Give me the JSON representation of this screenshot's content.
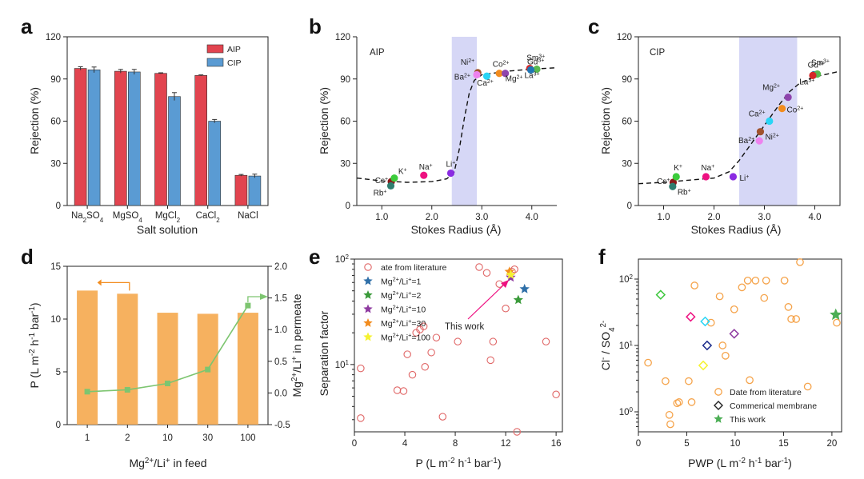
{
  "chart_data": [
    {
      "panel": "a",
      "type": "bar",
      "xlabel": "Salt solution",
      "ylabel": "Rejection (%)",
      "ylim": [
        0,
        120
      ],
      "yticks": [
        "0",
        "30",
        "60",
        "90",
        "120"
      ],
      "legend_position": "top-right",
      "categories": [
        {
          "parts": [
            [
              "Na",
              ""
            ],
            [
              "2",
              "sub"
            ],
            [
              "SO",
              ""
            ],
            [
              "4",
              "sub"
            ]
          ]
        },
        {
          "parts": [
            [
              "MgSO",
              ""
            ],
            [
              "4",
              "sub"
            ]
          ]
        },
        {
          "parts": [
            [
              "MgCl",
              ""
            ],
            [
              "2",
              "sub"
            ]
          ]
        },
        {
          "parts": [
            [
              "CaCl",
              ""
            ],
            [
              "2",
              "sub"
            ]
          ]
        },
        {
          "parts": [
            [
              "NaCl",
              ""
            ]
          ]
        }
      ],
      "series": [
        {
          "name": "AIP",
          "color": "#e2444f",
          "values": [
            97.5,
            95.5,
            94,
            92.5,
            21.5
          ],
          "errors": [
            1.2,
            1.3,
            0.4,
            0.4,
            0.6
          ]
        },
        {
          "name": "CIP",
          "color": "#5a9bd3",
          "values": [
            96.5,
            95,
            77.5,
            60,
            21
          ],
          "errors": [
            2,
            1.8,
            2.8,
            1.2,
            1.3
          ]
        }
      ]
    },
    {
      "panel": "b",
      "type": "scatter",
      "annotation": "AIP",
      "xlabel": "Stokes Radius (Å)",
      "ylabel": "Rejection (%)",
      "xlim": [
        0.5,
        4.5
      ],
      "ylim": [
        0,
        120
      ],
      "xticks": [
        "1.0",
        "2.0",
        "3.0",
        "4.0"
      ],
      "yticks": [
        "0",
        "30",
        "60",
        "90",
        "120"
      ],
      "band": [
        2.4,
        2.9
      ],
      "fit_curve": [
        [
          0.5,
          19.5
        ],
        [
          1.0,
          17.5
        ],
        [
          1.5,
          16.5
        ],
        [
          2.0,
          17
        ],
        [
          2.3,
          19
        ],
        [
          2.45,
          24
        ],
        [
          2.55,
          40
        ],
        [
          2.65,
          62
        ],
        [
          2.75,
          80
        ],
        [
          2.85,
          89
        ],
        [
          3.0,
          93
        ],
        [
          3.5,
          95.5
        ],
        [
          4.0,
          97
        ],
        [
          4.5,
          98
        ]
      ],
      "points": [
        {
          "label": "Cs+",
          "x": 1.19,
          "y": 17,
          "color": "#8b1a1a",
          "label_color": "#8b1a1a"
        },
        {
          "label": "K+",
          "x": 1.25,
          "y": 19.5,
          "color": "#3ccc3c",
          "label_color": "#2ca02c"
        },
        {
          "label": "Rb+",
          "x": 1.18,
          "y": 14,
          "color": "#2e7d6f",
          "label_color": "#2e7d6f"
        },
        {
          "label": "Na+",
          "x": 1.84,
          "y": 21.5,
          "color": "#ee1181",
          "label_color": "#ee1181"
        },
        {
          "label": "Li+",
          "x": 2.38,
          "y": 23,
          "color": "#8a2be2",
          "label_color": "#8a2be2"
        },
        {
          "label": "Ni2+",
          "x": 2.92,
          "y": 94.5,
          "color": "#a0522d",
          "label_color": "#a0522d"
        },
        {
          "label": "Ba2+",
          "x": 2.9,
          "y": 93,
          "color": "#ee82ee",
          "label_color": "#ee82ee"
        },
        {
          "label": "Ca2+",
          "x": 3.1,
          "y": 92,
          "color": "#29d5f5",
          "label_color": "#1fb5d6"
        },
        {
          "label": "Co2+",
          "x": 3.35,
          "y": 94,
          "color": "#f28c1e",
          "label_color": "#f28c1e"
        },
        {
          "label": "Mg2+",
          "x": 3.47,
          "y": 94,
          "color": "#8e44ad",
          "label_color": "#8e44ad"
        },
        {
          "label": "Sm3+",
          "x": 3.96,
          "y": 97.5,
          "color": "#d62728",
          "label_color": "#d62728"
        },
        {
          "label": "Gd3+",
          "x": 4.1,
          "y": 97,
          "color": "#59b84f",
          "label_color": "#59b84f"
        },
        {
          "label": "La3+",
          "x": 3.98,
          "y": 96.5,
          "color": "#1f77b4",
          "label_color": "#1f77b4"
        }
      ]
    },
    {
      "panel": "c",
      "type": "scatter",
      "annotation": "CIP",
      "xlabel": "Stokes Radius (Å)",
      "ylabel": "Rejection (%)",
      "xlim": [
        0.5,
        4.5
      ],
      "ylim": [
        0,
        120
      ],
      "xticks": [
        "1.0",
        "2.0",
        "3.0",
        "4.0"
      ],
      "yticks": [
        "0",
        "30",
        "60",
        "90",
        "120"
      ],
      "band": [
        2.5,
        3.65
      ],
      "fit_curve": [
        [
          0.5,
          15.5
        ],
        [
          1.0,
          16.5
        ],
        [
          1.5,
          18
        ],
        [
          2.0,
          19.5
        ],
        [
          2.3,
          24
        ],
        [
          2.5,
          32
        ],
        [
          2.7,
          42
        ],
        [
          2.9,
          52
        ],
        [
          3.1,
          62
        ],
        [
          3.3,
          72
        ],
        [
          3.5,
          81
        ],
        [
          3.7,
          87
        ],
        [
          4.0,
          91.5
        ],
        [
          4.5,
          95.5
        ]
      ],
      "points": [
        {
          "label": "Cs+",
          "x": 1.19,
          "y": 16.5,
          "color": "#8b1a1a",
          "label_color": "#8b1a1a"
        },
        {
          "label": "K+",
          "x": 1.25,
          "y": 20.5,
          "color": "#3ccc3c",
          "label_color": "#2ca02c"
        },
        {
          "label": "Rb+",
          "x": 1.18,
          "y": 13.5,
          "color": "#2e7d6f",
          "label_color": "#2e7d6f"
        },
        {
          "label": "Na+",
          "x": 1.84,
          "y": 20.5,
          "color": "#ee1181",
          "label_color": "#ee1181"
        },
        {
          "label": "Li+",
          "x": 2.38,
          "y": 20.5,
          "color": "#8a2be2",
          "label_color": "#8a2be2"
        },
        {
          "label": "Ba2+",
          "x": 2.9,
          "y": 46,
          "color": "#ee82ee",
          "label_color": "#ee82ee"
        },
        {
          "label": "Ni2+",
          "x": 2.92,
          "y": 52.5,
          "color": "#a0522d",
          "label_color": "#a0522d"
        },
        {
          "label": "Ca2+",
          "x": 3.1,
          "y": 60,
          "color": "#29d5f5",
          "label_color": "#1fb5d6"
        },
        {
          "label": "Co2+",
          "x": 3.35,
          "y": 69,
          "color": "#f28c1e",
          "label_color": "#f28c1e"
        },
        {
          "label": "Mg2+",
          "x": 3.47,
          "y": 77,
          "color": "#8e44ad",
          "label_color": "#8e44ad"
        },
        {
          "label": "La3+",
          "x": 3.98,
          "y": 93,
          "color": "#1f77b4",
          "label_color": "#1f77b4"
        },
        {
          "label": "Gd3+",
          "x": 4.05,
          "y": 93.5,
          "color": "#59b84f",
          "label_color": "#59b84f"
        },
        {
          "label": "Sm3+",
          "x": 3.96,
          "y": 92.5,
          "color": "#d62728",
          "label_color": "#d62728"
        }
      ]
    },
    {
      "panel": "d",
      "type": "bar+line",
      "xlabel": "Mg2+/Li+ in feed",
      "ylabel_left": "P (L m-2 h-1 bar-1)",
      "ylabel_right": "Mg2+/Li+ in permeate",
      "categories": [
        "1",
        "2",
        "10",
        "30",
        "100"
      ],
      "ylim_left": [
        0,
        15
      ],
      "yticks_left": [
        "0",
        "5",
        "10",
        "15"
      ],
      "ylim_right": [
        -0.5,
        2.0
      ],
      "yticks_right": [
        "-0.5",
        "0.0",
        "0.5",
        "1.0",
        "1.5",
        "2.0"
      ],
      "bars": {
        "color": "#f5a94e",
        "values": [
          12.7,
          12.4,
          10.6,
          10.5,
          10.6
        ]
      },
      "line": {
        "color": "#7dc570",
        "values": [
          0.02,
          0.05,
          0.15,
          0.37,
          1.38
        ]
      }
    },
    {
      "panel": "e",
      "type": "scatter",
      "xlabel": "P (L m-2 h-1 bar-1)",
      "ylabel": "Separation factor",
      "xlim": [
        0,
        16.5
      ],
      "ylim_log": [
        2.3,
        100
      ],
      "xticks": [
        "0",
        "4",
        "8",
        "12",
        "16"
      ],
      "annotation": "This work",
      "legend": [
        {
          "label": "Date from literature",
          "marker": "circle",
          "color": "#e06666"
        },
        {
          "label": "Mg2+/Li+=1",
          "marker": "star",
          "color": "#2f6fa8"
        },
        {
          "label": "Mg2+/Li+=2",
          "marker": "star",
          "color": "#3a9a3a"
        },
        {
          "label": "Mg2+/Li+=10",
          "marker": "star",
          "color": "#8e3aa0"
        },
        {
          "label": "Mg2+/Li+=30",
          "marker": "star",
          "color": "#f28c1e"
        },
        {
          "label": "Mg2+/Li+=100",
          "marker": "star",
          "color": "#f5f230"
        }
      ],
      "literature": [
        [
          0.5,
          9.2
        ],
        [
          0.5,
          3.1
        ],
        [
          3.4,
          5.7
        ],
        [
          3.9,
          5.6
        ],
        [
          4.2,
          12.5
        ],
        [
          4.6,
          8
        ],
        [
          4.9,
          20
        ],
        [
          5.2,
          21.5
        ],
        [
          5.5,
          23
        ],
        [
          5.6,
          9.5
        ],
        [
          6.1,
          13
        ],
        [
          6.5,
          18
        ],
        [
          7.0,
          3.2
        ],
        [
          8.2,
          16.5
        ],
        [
          9.9,
          84
        ],
        [
          10.5,
          74
        ],
        [
          10.8,
          11
        ],
        [
          11.0,
          16.5
        ],
        [
          11.5,
          58
        ],
        [
          12.0,
          34
        ],
        [
          12.5,
          76
        ],
        [
          12.9,
          2.3
        ],
        [
          15.2,
          16.5
        ],
        [
          16.0,
          5.2
        ],
        [
          12.7,
          80
        ]
      ],
      "this_work": [
        {
          "series": "Mg2+/Li+=1",
          "x": 13.5,
          "y": 52,
          "color": "#2f6fa8"
        },
        {
          "series": "Mg2+/Li+=2",
          "x": 13.0,
          "y": 41,
          "color": "#3a9a3a"
        },
        {
          "series": "Mg2+/Li+=10",
          "x": 12.4,
          "y": 67,
          "color": "#8e3aa0"
        },
        {
          "series": "Mg2+/Li+=30",
          "x": 12.3,
          "y": 76,
          "color": "#f28c1e"
        },
        {
          "series": "Mg2+/Li+=100",
          "x": 12.4,
          "y": 71,
          "color": "#f5f230"
        }
      ]
    },
    {
      "panel": "f",
      "type": "scatter",
      "xlabel": "PWP (L m-2 h-1 bar-1)",
      "ylabel": "Cl- / SO42-",
      "xlim": [
        0,
        21
      ],
      "ylim_log": [
        0.5,
        200
      ],
      "xticks": [
        "0",
        "5",
        "10",
        "15",
        "20"
      ],
      "legend": [
        {
          "label": "Date from literature",
          "marker": "circle",
          "color": "#f5a34a"
        },
        {
          "label": "Commerical membrane",
          "marker": "diamond",
          "color": "#222222"
        },
        {
          "label": "This work",
          "marker": "star",
          "color": "#4cae55"
        }
      ],
      "literature": [
        [
          1.0,
          5.5
        ],
        [
          2.8,
          2.9
        ],
        [
          3.2,
          0.9
        ],
        [
          3.3,
          0.65
        ],
        [
          4.0,
          1.35
        ],
        [
          4.2,
          1.4
        ],
        [
          5.2,
          2.9
        ],
        [
          5.5,
          1.4
        ],
        [
          5.8,
          80
        ],
        [
          7.5,
          22
        ],
        [
          8.4,
          55
        ],
        [
          8.7,
          10
        ],
        [
          9.0,
          7
        ],
        [
          9.9,
          35
        ],
        [
          10.7,
          75
        ],
        [
          11.3,
          95
        ],
        [
          11.5,
          3
        ],
        [
          12.1,
          95
        ],
        [
          13.0,
          52
        ],
        [
          13.2,
          95
        ],
        [
          15.1,
          95
        ],
        [
          15.5,
          38
        ],
        [
          15.8,
          25
        ],
        [
          16.3,
          25
        ],
        [
          16.7,
          180
        ],
        [
          17.5,
          2.4
        ],
        [
          20.5,
          22
        ]
      ],
      "commercial": [
        [
          2.3,
          58,
          "#3cc73c"
        ],
        [
          5.4,
          27,
          "#ee1181"
        ],
        [
          6.9,
          23,
          "#29d5f5"
        ],
        [
          6.7,
          5,
          "#f5f230"
        ],
        [
          7.1,
          10,
          "#1a2a8a"
        ],
        [
          9.9,
          15,
          "#8e3aa0"
        ]
      ],
      "this_work": [
        [
          20.4,
          29
        ]
      ]
    }
  ],
  "panel_letters": [
    "a",
    "b",
    "c",
    "d",
    "e",
    "f"
  ],
  "text": {
    "a": {
      "x": "Salt solution",
      "y": "Rejection (%)"
    },
    "b": {
      "x": "Stokes Radius (Å)",
      "y": "Rejection (%)",
      "tag": "AIP"
    },
    "c": {
      "x": "Stokes Radius (Å)",
      "y": "Rejection (%)",
      "tag": "CIP"
    },
    "e": {
      "y": "Separation factor",
      "note": "This work"
    }
  }
}
